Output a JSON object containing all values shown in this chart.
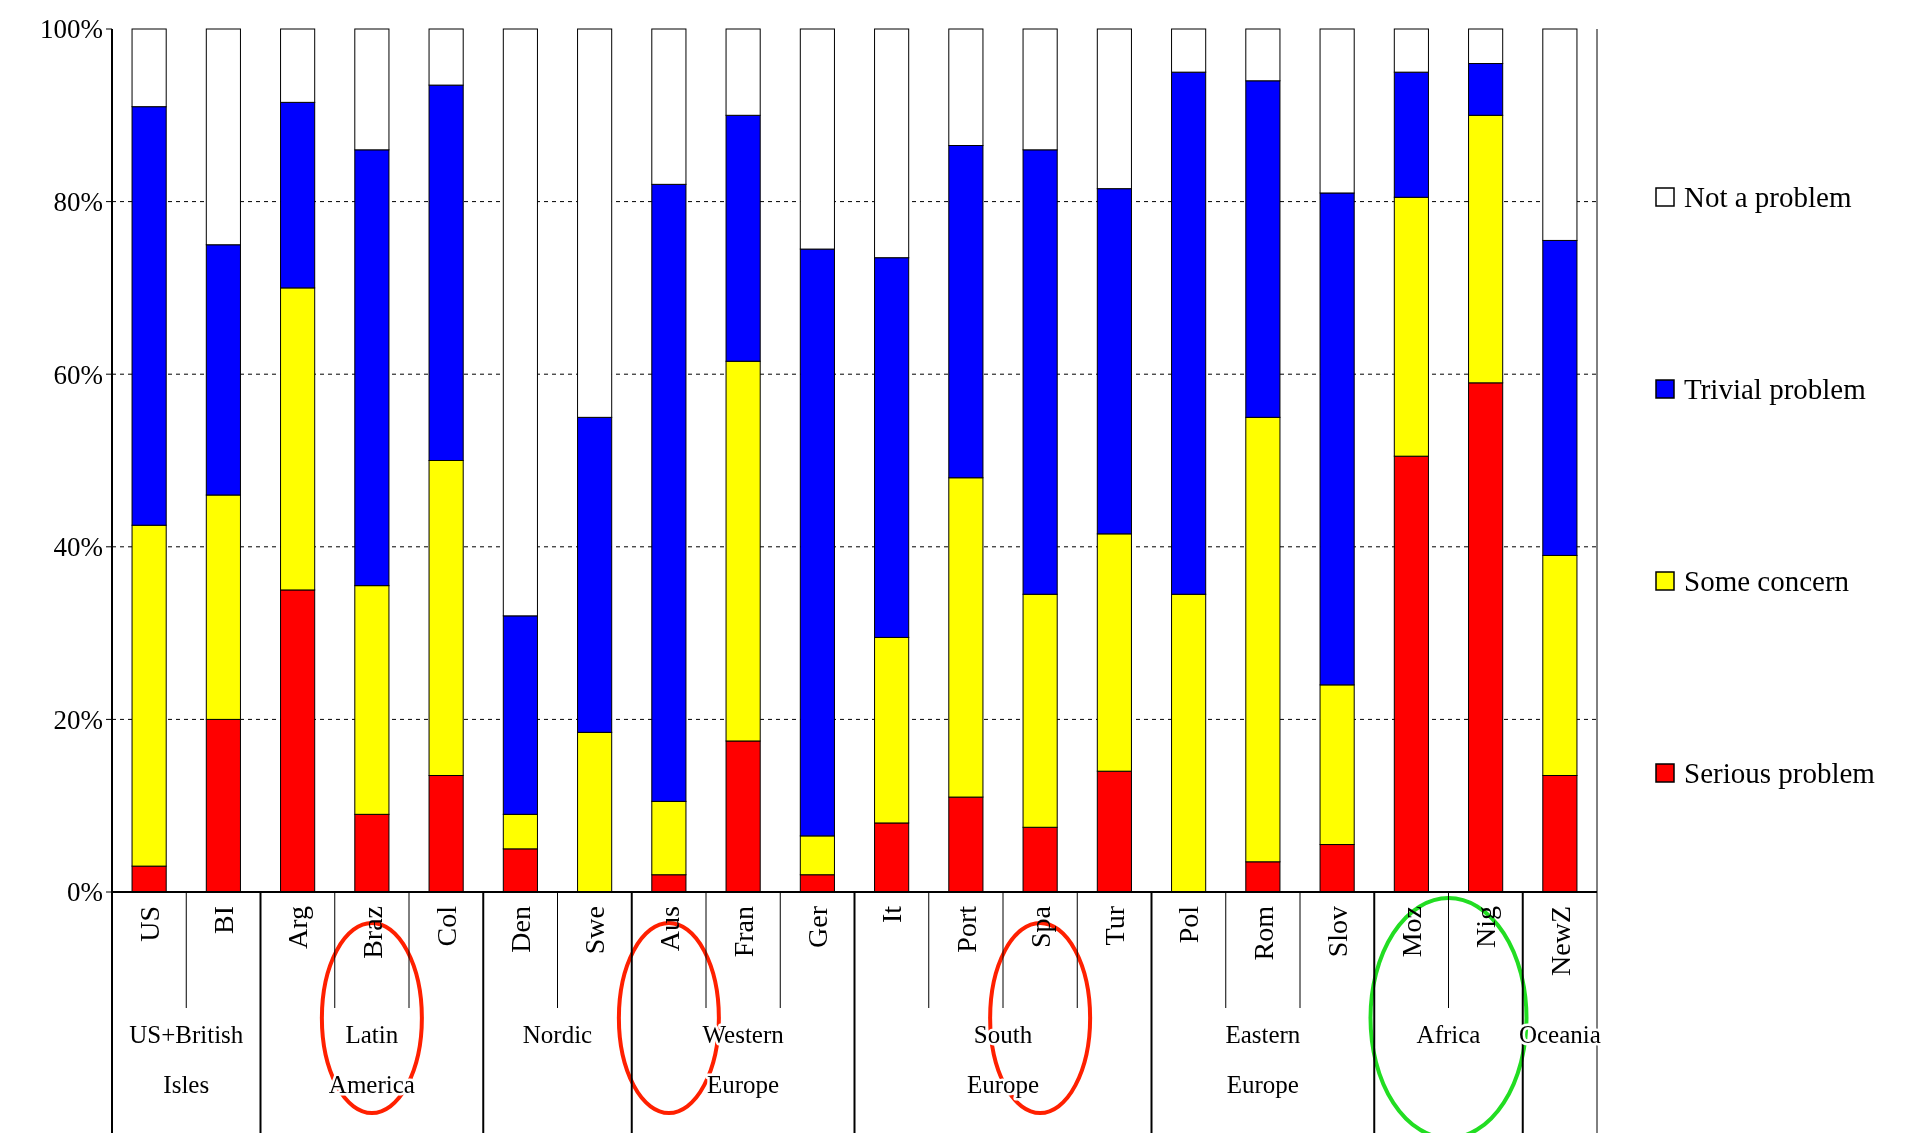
{
  "chart_data": {
    "type": "bar",
    "stacked": true,
    "categories": [
      "US",
      "BI",
      "Arg",
      "Braz",
      "Col",
      "Den",
      "Swe",
      "Aus",
      "Fran",
      "Ger",
      "It",
      "Port",
      "Spa",
      "Tur",
      "Pol",
      "Rom",
      "Slov",
      "Moz",
      "Nig",
      "NewZ"
    ],
    "series": [
      {
        "name": "Serious problem",
        "color": "#ff0000",
        "values": [
          3,
          20,
          35,
          9,
          13.5,
          5,
          0,
          2,
          17.5,
          2,
          8,
          11,
          7.5,
          14,
          0,
          3.5,
          5.5,
          50.5,
          59,
          13.5
        ]
      },
      {
        "name": "Some concern",
        "color": "#ffff00",
        "values": [
          39.5,
          26,
          35,
          26.5,
          36.5,
          4,
          18.5,
          8.5,
          44,
          4.5,
          21.5,
          37,
          27,
          27.5,
          34.5,
          51.5,
          18.5,
          30,
          31,
          25.5
        ]
      },
      {
        "name": "Trivial problem",
        "color": "#0000ff",
        "values": [
          48.5,
          29,
          21.5,
          50.5,
          43.5,
          23,
          36.5,
          71.5,
          28.5,
          68,
          44,
          38.5,
          51.5,
          40,
          60.5,
          39,
          57,
          14.5,
          6,
          36.5
        ]
      },
      {
        "name": "Not a problem",
        "color": "#ffffff",
        "values": [
          9,
          25,
          8.5,
          14,
          6.5,
          68,
          45,
          18,
          10,
          25.5,
          26.5,
          13.5,
          14,
          18.5,
          5,
          6,
          19,
          5,
          4,
          24.5
        ]
      }
    ],
    "ylim": [
      0,
      100
    ],
    "yticks": [
      {
        "value": 0,
        "label": "0%"
      },
      {
        "value": 20,
        "label": "20%"
      },
      {
        "value": 40,
        "label": "40%"
      },
      {
        "value": 60,
        "label": "60%"
      },
      {
        "value": 80,
        "label": "80%"
      },
      {
        "value": 100,
        "label": "100%"
      }
    ],
    "grid": "y",
    "legend": "right",
    "annotations": [
      "US+British Isles",
      "Latin America",
      "Nordic",
      "Western Europe",
      "South Europe",
      "Eastern Europe",
      "Africa",
      "Oceania"
    ]
  }
}
